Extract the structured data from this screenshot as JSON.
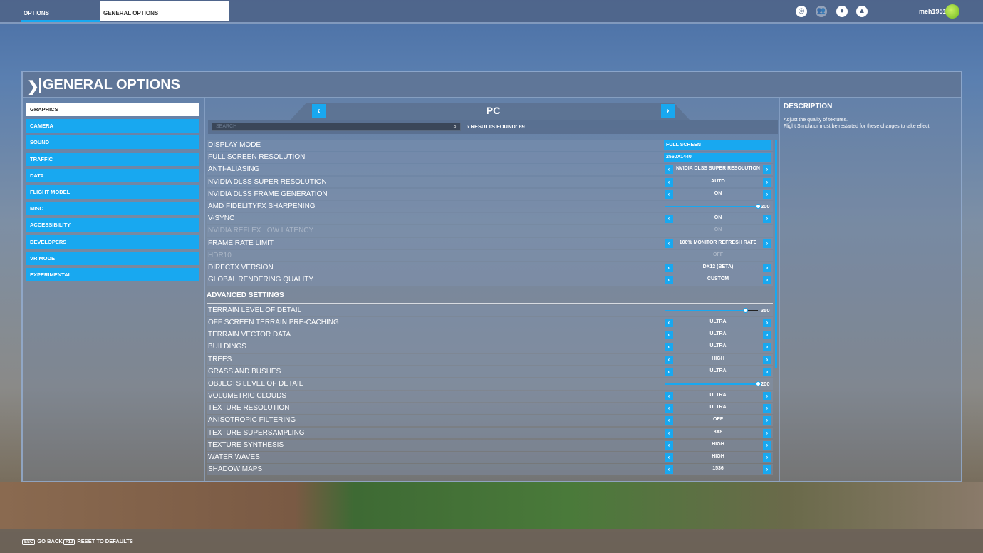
{
  "topbar": {
    "tabs": [
      "OPTIONS",
      "GENERAL OPTIONS"
    ],
    "icons": [
      "activity-icon",
      "friends-icon",
      "profile-icon",
      "notifications-icon"
    ],
    "username": "meh1951"
  },
  "panel": {
    "title": "GENERAL OPTIONS"
  },
  "sidebar": {
    "items": [
      "GRAPHICS",
      "CAMERA",
      "SOUND",
      "TRAFFIC",
      "DATA",
      "FLIGHT MODEL",
      "MISC",
      "ACCESSIBILITY",
      "DEVELOPERS",
      "VR MODE",
      "EXPERIMENTAL"
    ],
    "active": 0
  },
  "profile": {
    "name": "PC"
  },
  "search": {
    "placeholder": "SEARCH",
    "results": "RESULTS FOUND: 69"
  },
  "settings": [
    {
      "label": "DISPLAY MODE",
      "type": "dropdown",
      "value": "FULL SCREEN"
    },
    {
      "label": "FULL SCREEN RESOLUTION",
      "type": "dropdown",
      "value": "2560X1440"
    },
    {
      "label": "ANTI-ALIASING",
      "type": "arrows",
      "value": "NVIDIA DLSS SUPER RESOLUTION"
    },
    {
      "label": "NVIDIA DLSS SUPER RESOLUTION",
      "type": "arrows",
      "value": "AUTO"
    },
    {
      "label": "NVIDIA DLSS FRAME GENERATION",
      "type": "arrows",
      "value": "ON"
    },
    {
      "label": "AMD FIDELITYFX SHARPENING",
      "type": "slider",
      "value": "200",
      "fraction": 1.0
    },
    {
      "label": "V-SYNC",
      "type": "arrows",
      "value": "ON"
    },
    {
      "label": "NVIDIA REFLEX LOW LATENCY",
      "type": "disabled",
      "value": "ON"
    },
    {
      "label": "FRAME RATE LIMIT",
      "type": "arrows",
      "value": "100% MONITOR REFRESH RATE"
    },
    {
      "label": "HDR10",
      "type": "disabled",
      "value": "OFF"
    },
    {
      "label": "DIRECTX VERSION",
      "type": "arrows",
      "value": "DX12 (BETA)"
    },
    {
      "label": "GLOBAL RENDERING QUALITY",
      "type": "arrows",
      "value": "CUSTOM"
    },
    {
      "label": "ADVANCED SETTINGS",
      "type": "section"
    },
    {
      "label": "TERRAIN LEVEL OF DETAIL",
      "type": "slider",
      "value": "350",
      "fraction": 0.86
    },
    {
      "label": "OFF SCREEN TERRAIN PRE-CACHING",
      "type": "arrows",
      "value": "ULTRA"
    },
    {
      "label": "TERRAIN VECTOR DATA",
      "type": "arrows",
      "value": "ULTRA"
    },
    {
      "label": "BUILDINGS",
      "type": "arrows",
      "value": "ULTRA"
    },
    {
      "label": "TREES",
      "type": "arrows",
      "value": "HIGH"
    },
    {
      "label": "GRASS AND BUSHES",
      "type": "arrows",
      "value": "ULTRA"
    },
    {
      "label": "OBJECTS LEVEL OF DETAIL",
      "type": "slider",
      "value": "200",
      "fraction": 1.0
    },
    {
      "label": "VOLUMETRIC CLOUDS",
      "type": "arrows",
      "value": "ULTRA"
    },
    {
      "label": "TEXTURE RESOLUTION",
      "type": "arrows",
      "value": "ULTRA"
    },
    {
      "label": "ANISOTROPIC FILTERING",
      "type": "arrows",
      "value": "OFF"
    },
    {
      "label": "TEXTURE SUPERSAMPLING",
      "type": "arrows",
      "value": "8X8"
    },
    {
      "label": "TEXTURE SYNTHESIS",
      "type": "arrows",
      "value": "HIGH"
    },
    {
      "label": "WATER WAVES",
      "type": "arrows",
      "value": "HIGH"
    },
    {
      "label": "SHADOW MAPS",
      "type": "arrows",
      "value": "1536"
    }
  ],
  "description": {
    "title": "DESCRIPTION",
    "lines": [
      "Adjust the quality of textures.",
      "Flight Simulator must be restarted for these changes to take effect."
    ]
  },
  "footer": {
    "back_key": "ESC",
    "back_label": "GO BACK",
    "reset_key": "F12",
    "reset_label": "RESET TO DEFAULTS"
  },
  "colors": {
    "accent": "#18a8f0"
  }
}
